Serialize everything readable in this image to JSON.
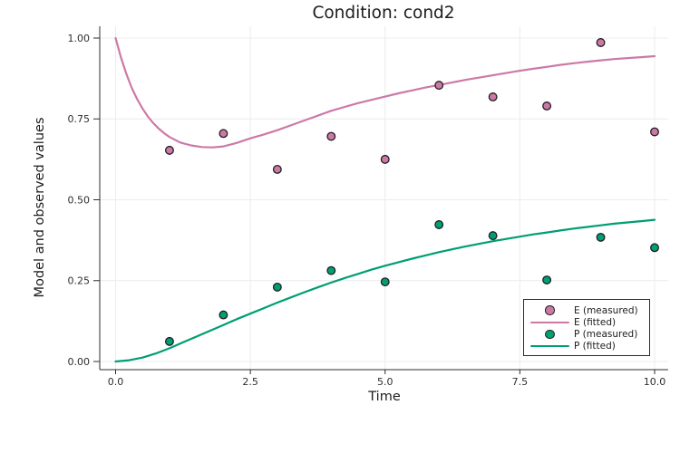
{
  "chart_data": {
    "type": "scatter",
    "title": "Condition: cond2",
    "xlabel": "Time",
    "ylabel": "Model and observed values",
    "xlim": [
      -0.3,
      10.25
    ],
    "ylim": [
      -0.025,
      1.035
    ],
    "grid": true,
    "legend_position": "bottom-right",
    "x_ticks": [
      "0.0",
      "2.5",
      "5.0",
      "7.5",
      "10.0"
    ],
    "x_tick_values": [
      0,
      2.5,
      5,
      7.5,
      10
    ],
    "y_ticks": [
      "0.00",
      "0.25",
      "0.50",
      "0.75",
      "1.00"
    ],
    "y_tick_values": [
      0,
      0.25,
      0.5,
      0.75,
      1.0
    ],
    "style": {
      "e_color": "#CC79A7",
      "p_color": "#009E73",
      "grid_color": "#ececec",
      "axis_color": "#2d2d2d",
      "tick_label_color": "#2e2e2e",
      "marker_stroke": "#1f1f1f",
      "legend_border": "#2b2b2b",
      "background": "#ffffff"
    },
    "series": [
      {
        "id": "e-measured",
        "name": "E (measured)",
        "type": "scatter",
        "color": "#CC79A7",
        "x": [
          1,
          2,
          3,
          4,
          5,
          6,
          7,
          8,
          9,
          10
        ],
        "y": [
          0.653,
          0.705,
          0.594,
          0.696,
          0.625,
          0.854,
          0.818,
          0.79,
          0.986,
          0.71
        ]
      },
      {
        "id": "e-fitted",
        "name": "E (fitted)",
        "type": "line",
        "color": "#CC79A7",
        "x": [
          0,
          0.1,
          0.2,
          0.3,
          0.4,
          0.5,
          0.6,
          0.7,
          0.8,
          0.9,
          1.0,
          1.2,
          1.4,
          1.6,
          1.8,
          2.0,
          2.25,
          2.5,
          2.75,
          3.0,
          3.25,
          3.5,
          3.75,
          4.0,
          4.25,
          4.5,
          4.75,
          5.0,
          5.25,
          5.5,
          5.75,
          6.0,
          6.25,
          6.5,
          6.75,
          7.0,
          7.25,
          7.5,
          7.75,
          8.0,
          8.25,
          8.5,
          8.75,
          9.0,
          9.25,
          9.5,
          9.75,
          10.0
        ],
        "y": [
          1.0,
          0.94,
          0.889,
          0.846,
          0.811,
          0.782,
          0.757,
          0.737,
          0.72,
          0.706,
          0.694,
          0.677,
          0.668,
          0.663,
          0.662,
          0.665,
          0.676,
          0.69,
          0.702,
          0.715,
          0.73,
          0.745,
          0.76,
          0.775,
          0.787,
          0.799,
          0.809,
          0.819,
          0.829,
          0.838,
          0.847,
          0.855,
          0.863,
          0.871,
          0.878,
          0.885,
          0.892,
          0.899,
          0.905,
          0.911,
          0.917,
          0.922,
          0.927,
          0.931,
          0.935,
          0.938,
          0.941,
          0.944
        ]
      },
      {
        "id": "p-measured",
        "name": "P (measured)",
        "type": "scatter",
        "color": "#009E73",
        "x": [
          1,
          2,
          3,
          4,
          5,
          6,
          7,
          8,
          9,
          10
        ],
        "y": [
          0.062,
          0.144,
          0.23,
          0.281,
          0.246,
          0.423,
          0.389,
          0.252,
          0.384,
          0.352
        ]
      },
      {
        "id": "p-fitted",
        "name": "P (fitted)",
        "type": "line",
        "color": "#009E73",
        "x": [
          0,
          0.25,
          0.5,
          0.75,
          1.0,
          1.25,
          1.5,
          1.75,
          2.0,
          2.25,
          2.5,
          2.75,
          3.0,
          3.25,
          3.5,
          3.75,
          4.0,
          4.25,
          4.5,
          4.75,
          5.0,
          5.25,
          5.5,
          5.75,
          6.0,
          6.25,
          6.5,
          6.75,
          7.0,
          7.25,
          7.5,
          7.75,
          8.0,
          8.25,
          8.5,
          8.75,
          9.0,
          9.25,
          9.5,
          9.75,
          10.0
        ],
        "y": [
          0.0,
          0.004,
          0.012,
          0.025,
          0.041,
          0.059,
          0.077,
          0.095,
          0.113,
          0.131,
          0.148,
          0.165,
          0.182,
          0.198,
          0.214,
          0.229,
          0.244,
          0.258,
          0.271,
          0.284,
          0.296,
          0.307,
          0.318,
          0.328,
          0.338,
          0.347,
          0.356,
          0.364,
          0.372,
          0.379,
          0.386,
          0.393,
          0.399,
          0.405,
          0.411,
          0.416,
          0.421,
          0.426,
          0.43,
          0.434,
          0.438
        ]
      }
    ],
    "legend_entries": [
      {
        "label": "E (measured)",
        "swatch": "circle",
        "color": "#CC79A7"
      },
      {
        "label": "E (fitted)",
        "swatch": "line",
        "color": "#CC79A7"
      },
      {
        "label": "P (measured)",
        "swatch": "circle",
        "color": "#009E73"
      },
      {
        "label": "P (fitted)",
        "swatch": "line",
        "color": "#009E73"
      }
    ]
  }
}
